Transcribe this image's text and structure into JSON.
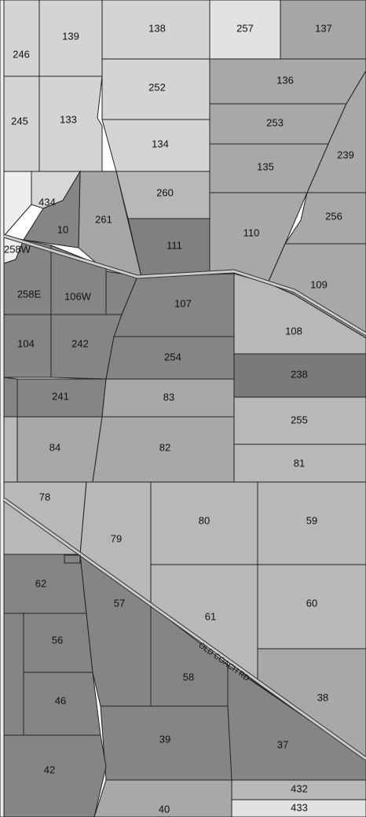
{
  "parcels": [
    {
      "label": "246",
      "color": "#d4d4d4"
    },
    {
      "label": "139",
      "color": "#d4d4d4"
    },
    {
      "label": "138",
      "color": "#d4d4d4"
    },
    {
      "label": "257",
      "color": "#e2e2e2"
    },
    {
      "label": "137",
      "color": "#a6a6a6"
    },
    {
      "label": "245",
      "color": "#d4d4d4"
    },
    {
      "label": "133",
      "color": "#d4d4d4"
    },
    {
      "label": "252",
      "color": "#d4d4d4"
    },
    {
      "label": "134",
      "color": "#d4d4d4"
    },
    {
      "label": "136",
      "color": "#a8a8a8"
    },
    {
      "label": "253",
      "color": "#a8a8a8"
    },
    {
      "label": "239",
      "color": "#a8a8a8"
    },
    {
      "label": "135",
      "color": "#a8a8a8"
    },
    {
      "label": "256",
      "color": "#a8a8a8"
    },
    {
      "label": "110",
      "color": "#a8a8a8"
    },
    {
      "label": "109",
      "color": "#a8a8a8"
    },
    {
      "label": "260",
      "color": "#b8b8b8"
    },
    {
      "label": "111",
      "color": "#808080"
    },
    {
      "label": "261",
      "color": "#a6a6a6"
    },
    {
      "label": "434",
      "color": "#d8d8d8"
    },
    {
      "label": "10",
      "color": "#858585"
    },
    {
      "label": "258W",
      "color": "#eeeeee"
    },
    {
      "label": "258E",
      "color": "#858585"
    },
    {
      "label": "106W",
      "color": "#858585"
    },
    {
      "label": "107",
      "color": "#858585"
    },
    {
      "label": "108",
      "color": "#b8b8b8"
    },
    {
      "label": "104",
      "color": "#858585"
    },
    {
      "label": "242",
      "color": "#858585"
    },
    {
      "label": "254",
      "color": "#858585"
    },
    {
      "label": "238",
      "color": "#7a7a7a"
    },
    {
      "label": "241",
      "color": "#858585"
    },
    {
      "label": "83",
      "color": "#a8a8a8"
    },
    {
      "label": "255",
      "color": "#b8b8b8"
    },
    {
      "label": "84",
      "color": "#a8a8a8"
    },
    {
      "label": "82",
      "color": "#a8a8a8"
    },
    {
      "label": "81",
      "color": "#b8b8b8"
    },
    {
      "label": "78",
      "color": "#b8b8b8"
    },
    {
      "label": "79",
      "color": "#b8b8b8"
    },
    {
      "label": "80",
      "color": "#b8b8b8"
    },
    {
      "label": "59",
      "color": "#b8b8b8"
    },
    {
      "label": "61",
      "color": "#b8b8b8"
    },
    {
      "label": "60",
      "color": "#b8b8b8"
    },
    {
      "label": "38",
      "color": "#a8a8a8"
    },
    {
      "label": "62",
      "color": "#858585"
    },
    {
      "label": "56",
      "color": "#858585"
    },
    {
      "label": "46",
      "color": "#858585"
    },
    {
      "label": "57",
      "color": "#858585"
    },
    {
      "label": "58",
      "color": "#858585"
    },
    {
      "label": "37",
      "color": "#858585"
    },
    {
      "label": "39",
      "color": "#858585"
    },
    {
      "label": "42",
      "color": "#858585"
    },
    {
      "label": "40",
      "color": "#a8a8a8"
    },
    {
      "label": "432",
      "color": "#b8b8b8"
    },
    {
      "label": "433",
      "color": "#e2e2e2"
    }
  ],
  "road_label": "OLD COACH RD"
}
